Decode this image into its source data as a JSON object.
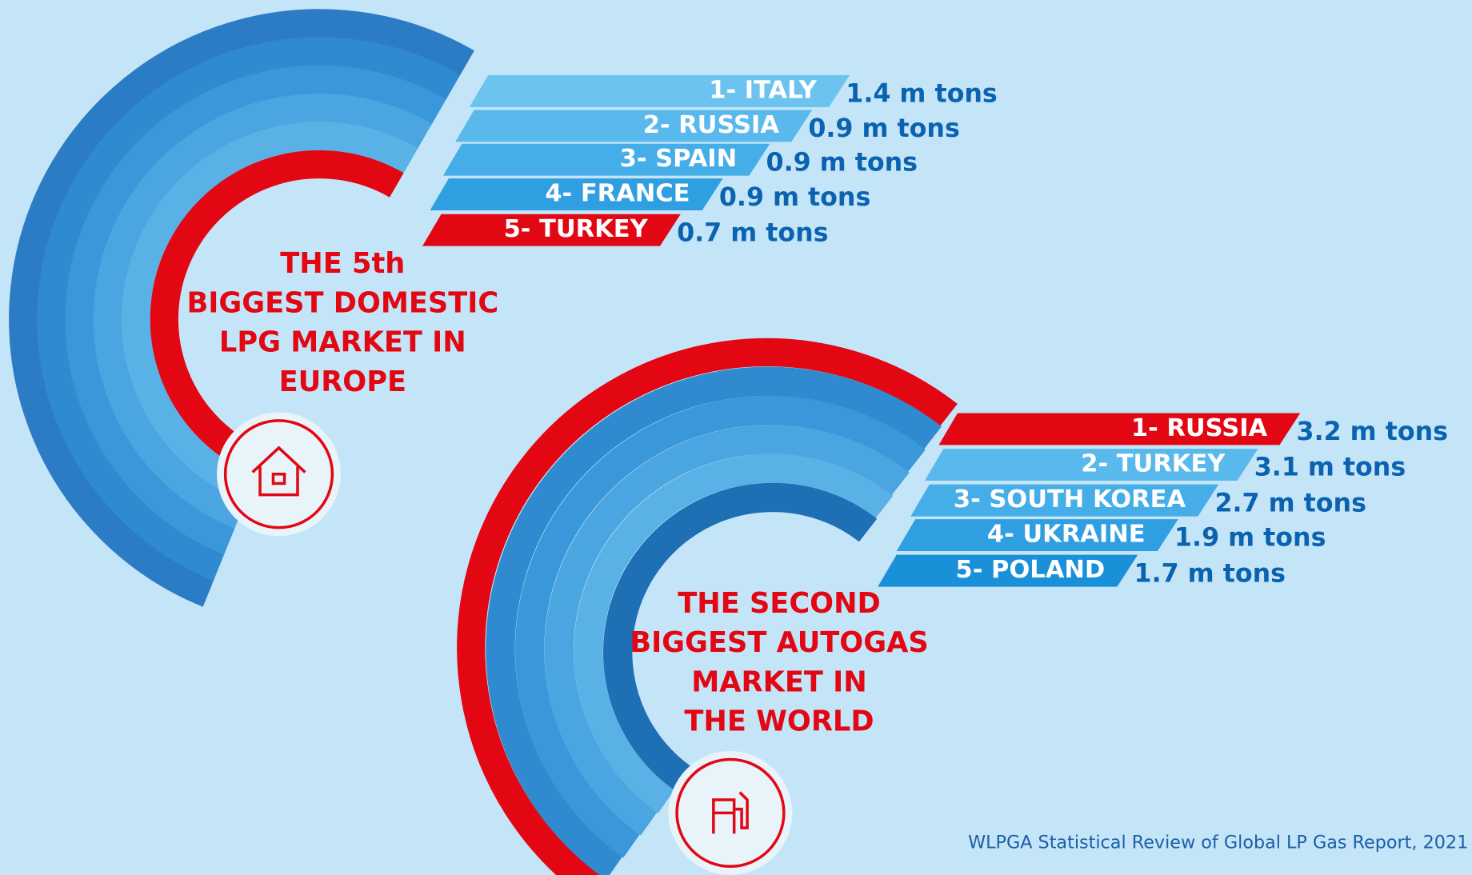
{
  "panels": [
    {
      "title_lines": [
        "THE 5th",
        "BIGGEST DOMESTIC",
        "LPG MARKET IN",
        "EUROPE"
      ],
      "items": [
        {
          "label": "1- ITALY",
          "value": "1.4 m tons"
        },
        {
          "label": "2- RUSSIA",
          "value": "0.9 m tons"
        },
        {
          "label": "3- SPAIN",
          "value": "0.9 m tons"
        },
        {
          "label": "4- FRANCE",
          "value": "0.9 m tons"
        },
        {
          "label": "5- TURKEY",
          "value": "0.7 m tons"
        }
      ]
    },
    {
      "title_lines": [
        "THE SECOND",
        "BIGGEST AUTOGAS",
        "MARKET IN",
        "THE WORLD"
      ],
      "items": [
        {
          "label": "1- RUSSIA",
          "value": "3.2 m tons"
        },
        {
          "label": "2- TURKEY",
          "value": "3.1 m tons"
        },
        {
          "label": "3- SOUTH KOREA",
          "value": "2.7 m tons"
        },
        {
          "label": "4- UKRAINE",
          "value": "1.9 m tons"
        },
        {
          "label": "5- POLAND",
          "value": "1.7 m tons"
        }
      ]
    }
  ],
  "source": "WLPGA Statistical Review of Global LP Gas Report, 2021"
}
